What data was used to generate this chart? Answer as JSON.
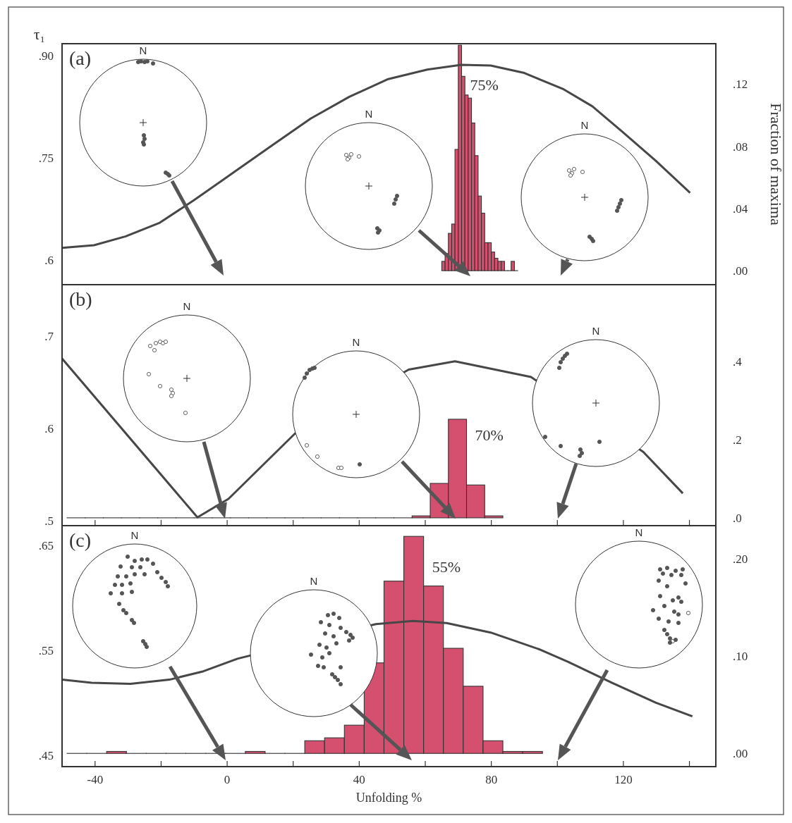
{
  "chart_data": [
    {
      "type": "line",
      "ylabel": "τ₁",
      "y2label": "Fraction of maxima",
      "annotations": [
        "(a)",
        "75%",
        "N",
        "N",
        "N"
      ],
      "xlim": [
        -50,
        148
      ],
      "ylim": [
        0.564,
        0.918
      ],
      "yticks": [
        {
          "value": 0.6,
          "label": ".6"
        },
        {
          "value": 0.75,
          "label": ".75"
        },
        {
          "value": 0.9,
          "label": ".90"
        }
      ],
      "y2lim": [
        -0.009,
        0.146
      ],
      "y2ticks": [
        {
          "value": 0,
          "label": ".00"
        },
        {
          "value": 0.04,
          "label": ".04"
        },
        {
          "value": 0.08,
          "label": ".08"
        },
        {
          "value": 0.12,
          "label": ".12"
        }
      ],
      "tick_labels": "y",
      "series": [
        {
          "type": "line",
          "color": "#474747",
          "x": [
            -50,
            -40.3,
            -30.7,
            -20.4,
            -10.1,
            1.7,
            13.4,
            25.3,
            37,
            48.8,
            60.6,
            70.9,
            79.8,
            90,
            101.9,
            110.6,
            119.6,
            129.8,
            140.2
          ],
          "values": [
            0.618,
            0.622,
            0.635,
            0.655,
            0.688,
            0.728,
            0.768,
            0.808,
            0.84,
            0.866,
            0.88,
            0.887,
            0.886,
            0.875,
            0.851,
            0.826,
            0.789,
            0.746,
            0.699
          ]
        },
        {
          "type": "histogram",
          "axis": "y2",
          "color": "#d5506e",
          "bins": [
            65,
            66,
            67,
            68,
            69,
            70,
            71,
            72,
            73,
            74,
            75,
            76,
            77,
            78,
            79,
            80,
            81,
            82,
            83,
            84,
            85,
            86,
            87,
            88
          ],
          "values": [
            0.006,
            0.011,
            0.024,
            0.03,
            0.078,
            0.145,
            0.125,
            0.113,
            0.111,
            0.095,
            0.074,
            0.048,
            0.037,
            0.018,
            0.018,
            0.012,
            0.008,
            0.006,
            0.006,
            0,
            0,
            0.006,
            0
          ]
        }
      ]
    },
    {
      "type": "line",
      "annotations": [
        "(b)",
        "70%",
        "N",
        "N",
        "N"
      ],
      "xlim": [
        -50,
        148
      ],
      "xticks": [
        {
          "value": -40,
          "label": null
        },
        {
          "value": -20,
          "label": null
        },
        {
          "value": 0,
          "label": null
        },
        {
          "value": 20,
          "label": null
        },
        {
          "value": 40,
          "label": null
        },
        {
          "value": 60,
          "label": null
        },
        {
          "value": 80,
          "label": null
        },
        {
          "value": 100,
          "label": null
        },
        {
          "value": 120,
          "label": null
        },
        {
          "value": 140,
          "label": null
        }
      ],
      "ylim": [
        0.495,
        0.756
      ],
      "yticks": [
        {
          "value": 0.5,
          "label": ".5"
        },
        {
          "value": 0.6,
          "label": ".6"
        },
        {
          "value": 0.7,
          "label": ".7"
        }
      ],
      "y2lim": [
        -0.02,
        0.596
      ],
      "y2ticks": [
        {
          "value": 0,
          "label": ".0"
        },
        {
          "value": 0.2,
          "label": ".2"
        },
        {
          "value": 0.4,
          "label": ".4"
        }
      ],
      "tick_labels": "y",
      "series": [
        {
          "type": "line",
          "color": "#474747",
          "x": [
            -50,
            -9,
            0.4,
            20.6,
            55,
            69,
            92,
            126,
            138
          ],
          "values": [
            0.676,
            0.504,
            0.524,
            0.595,
            0.664,
            0.673,
            0.656,
            0.575,
            0.53
          ]
        },
        {
          "type": "histogram",
          "axis": "y2",
          "color": "#d5506e",
          "bins": [
            -48.5,
            -43,
            -37.5,
            -32,
            -26.5,
            -21,
            -15.5,
            -10,
            -4.5,
            1,
            6.5,
            12,
            17.5,
            23,
            28.5,
            34,
            39.5,
            45,
            50.5,
            56,
            61.5,
            67,
            72.5,
            78,
            83.5
          ],
          "values": [
            0,
            0,
            0,
            0,
            0,
            0,
            0,
            0,
            0,
            0,
            0,
            0,
            0,
            0,
            0,
            0,
            0,
            0,
            0,
            0.005,
            0.088,
            0.252,
            0.084,
            0.005
          ]
        }
      ]
    },
    {
      "type": "line",
      "xlabel": "Unfolding %",
      "annotations": [
        "(c)",
        "55%",
        "N",
        "N",
        "N"
      ],
      "xlim": [
        -50,
        148
      ],
      "xticks": [
        -40,
        {
          "value": -20,
          "label": null
        },
        0,
        {
          "value": 20,
          "label": null
        },
        40,
        {
          "value": 60,
          "label": null
        },
        80,
        {
          "value": 100,
          "label": null
        },
        120,
        {
          "value": 140,
          "label": null
        }
      ],
      "ylim": [
        0.439,
        0.669
      ],
      "yticks": [
        {
          "value": 0.45,
          "label": ".45"
        },
        {
          "value": 0.55,
          "label": ".55"
        },
        {
          "value": 0.65,
          "label": ".65"
        }
      ],
      "y2lim": [
        -0.0136,
        0.234
      ],
      "y2ticks": [
        {
          "value": 0,
          "label": ".00"
        },
        {
          "value": 0.1,
          "label": ".10"
        },
        {
          "value": 0.2,
          "label": ".20"
        }
      ],
      "series": [
        {
          "type": "line",
          "color": "#474747",
          "x": [
            -50,
            -41,
            -29.3,
            -17.5,
            -7.2,
            3.1,
            45,
            56.2,
            66.5,
            79.8,
            94.5,
            103.3,
            116.6,
            129.9,
            140.9
          ],
          "values": [
            0.522,
            0.519,
            0.518,
            0.522,
            0.53,
            0.542,
            0.575,
            0.578,
            0.576,
            0.567,
            0.551,
            0.539,
            0.519,
            0.5,
            0.487
          ]
        },
        {
          "type": "histogram",
          "axis": "y2",
          "color": "#d5506e",
          "bins": [
            -48.5,
            -42.5,
            -36.5,
            -30.5,
            -24.5,
            -18.5,
            -12.5,
            -6.5,
            -0.5,
            5.5,
            11.5,
            17.5,
            23.5,
            29.5,
            35.5,
            41.5,
            47.5,
            53.5,
            59.5,
            65.5,
            71.5,
            77.5,
            83.5,
            89.5,
            95.5
          ],
          "values": [
            0,
            0,
            0.002,
            0,
            0,
            0,
            0,
            0,
            0,
            0.002,
            0,
            0,
            0.013,
            0.016,
            0.029,
            0.093,
            0.177,
            0.223,
            0.172,
            0.108,
            0.069,
            0.013,
            0.002,
            0.002
          ]
        }
      ]
    }
  ]
}
